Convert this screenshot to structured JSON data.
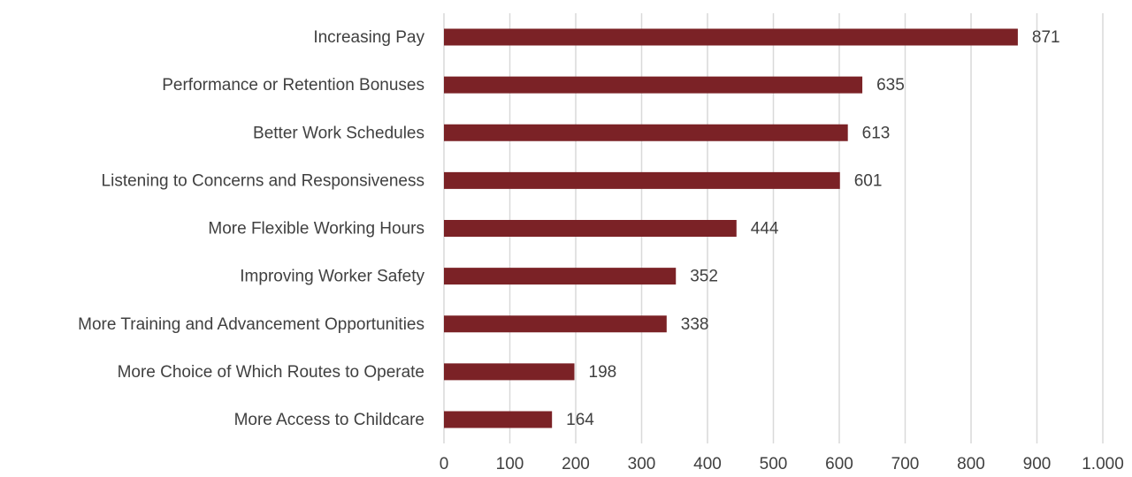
{
  "chart_data": {
    "type": "bar",
    "orientation": "horizontal",
    "categories": [
      "Increasing Pay",
      "Performance or Retention Bonuses",
      "Better Work Schedules",
      "Listening to Concerns and Responsiveness",
      "More Flexible Working Hours",
      "Improving Worker Safety",
      "More Training and Advancement Opportunities",
      "More Choice of Which Routes to Operate",
      "More Access to Childcare"
    ],
    "values": [
      871,
      635,
      613,
      601,
      444,
      352,
      338,
      198,
      164
    ],
    "color": "#7b2226",
    "xlim": [
      0,
      1000
    ],
    "xticks": [
      0,
      100,
      200,
      300,
      400,
      500,
      600,
      700,
      800,
      900,
      {
        "value": 1000,
        "label": "1.000"
      }
    ],
    "grid": true
  }
}
